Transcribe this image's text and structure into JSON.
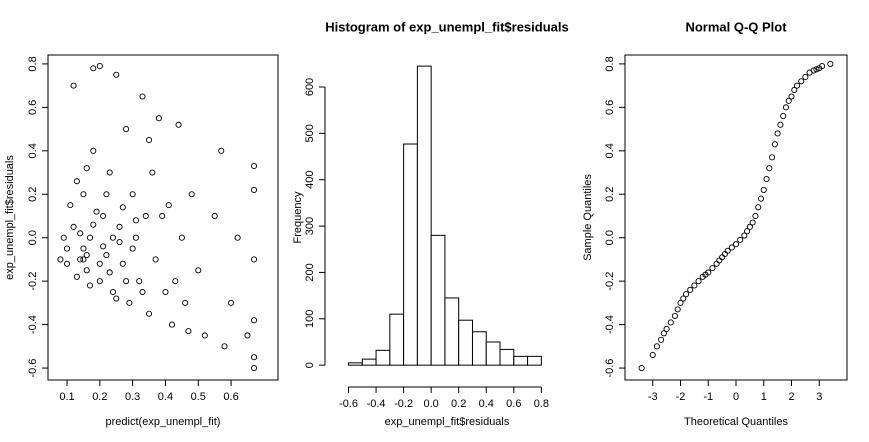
{
  "chart_data": [
    {
      "type": "scatter",
      "xlabel": "predict(exp_unempl_fit)",
      "ylabel": "exp_unempl_fit$residuals",
      "xlim": [
        0.042,
        0.743
      ],
      "ylim": [
        -0.655,
        0.841
      ],
      "xticks": [
        0.1,
        0.2,
        0.3,
        0.4,
        0.5,
        0.6
      ],
      "yticks": [
        -0.6,
        -0.4,
        -0.2,
        {
          "value": 0,
          "label": "0.0"
        },
        0.2,
        0.4,
        0.6,
        0.8
      ],
      "box": true,
      "series": [
        {
          "color": "#000000",
          "x": [
            0.1,
            0.12,
            0.14,
            0.15,
            0.16,
            0.17,
            0.18,
            0.2,
            0.18,
            0.2,
            0.21,
            0.22,
            0.23,
            0.24,
            0.25,
            0.26,
            0.27,
            0.28,
            0.29,
            0.3,
            0.31,
            0.32,
            0.33,
            0.34,
            0.35,
            0.36,
            0.37,
            0.38,
            0.4,
            0.41,
            0.42,
            0.44,
            0.45,
            0.46,
            0.48,
            0.5,
            0.52,
            0.55,
            0.57,
            0.58,
            0.6,
            0.62,
            0.65,
            0.67,
            0.67,
            0.67,
            0.67,
            0.67,
            0.67,
            0.08,
            0.09,
            0.11,
            0.13,
            0.13,
            0.15,
            0.16,
            0.17,
            0.19,
            0.2,
            0.22,
            0.24,
            0.25,
            0.27,
            0.3,
            0.33,
            0.35,
            0.39,
            0.43,
            0.47,
            0.12,
            0.1,
            0.14,
            0.16,
            0.18,
            0.21,
            0.23,
            0.26,
            0.28,
            0.31,
            0.15
          ],
          "y": [
            -0.05,
            0.05,
            -0.1,
            0.2,
            -0.15,
            0.0,
            0.78,
            0.79,
            0.4,
            -0.2,
            0.1,
            -0.08,
            0.3,
            -0.25,
            0.75,
            0.05,
            -0.12,
            0.5,
            -0.3,
            0.2,
            0.0,
            -0.2,
            0.65,
            0.1,
            -0.35,
            0.3,
            -0.1,
            0.55,
            -0.25,
            0.15,
            -0.4,
            0.52,
            0.0,
            -0.3,
            0.2,
            -0.15,
            -0.45,
            0.1,
            0.4,
            -0.5,
            -0.3,
            0.0,
            -0.45,
            0.33,
            0.22,
            -0.1,
            -0.38,
            -0.6,
            -0.55,
            -0.1,
            0.0,
            0.15,
            -0.18,
            0.26,
            -0.05,
            0.32,
            -0.22,
            0.12,
            -0.12,
            0.2,
            0.0,
            -0.28,
            0.14,
            -0.05,
            -0.25,
            0.45,
            0.1,
            -0.2,
            -0.43,
            0.7,
            -0.12,
            0.02,
            -0.08,
            0.06,
            -0.04,
            -0.16,
            -0.02,
            -0.2,
            0.08,
            -0.1
          ]
        }
      ]
    },
    {
      "type": "histogram",
      "title": "Histogram of exp_unempl_fit$residuals",
      "xlabel": "exp_unempl_fit$residuals",
      "ylabel": "Frequency",
      "xlim": [
        -0.72,
        0.95
      ],
      "ylim": [
        -32,
        669
      ],
      "xticks": [
        -0.6,
        -0.4,
        -0.2,
        {
          "value": 0,
          "label": "0.0"
        },
        0.2,
        0.4,
        0.6,
        0.8
      ],
      "yticks": [
        0,
        100,
        200,
        300,
        400,
        500,
        600
      ],
      "bins": [
        -0.6,
        -0.5,
        -0.4,
        -0.3,
        -0.2,
        -0.1,
        0,
        0.1,
        0.2,
        0.3,
        0.4,
        0.5,
        0.6,
        0.7,
        0.8
      ],
      "values": [
        5,
        13,
        32,
        110,
        477,
        645,
        280,
        145,
        97,
        72,
        50,
        34,
        19,
        19
      ],
      "color": "#ffffff"
    },
    {
      "type": "scatter",
      "title": "Normal Q-Q Plot",
      "xlabel": "Theoretical Quantiles",
      "ylabel": "Sample Quantiles",
      "xlim": [
        -4.0,
        4.0
      ],
      "ylim": [
        -0.655,
        0.841
      ],
      "xticks": [
        -3,
        -2,
        -1,
        0,
        1,
        2,
        3
      ],
      "yticks": [
        -0.6,
        -0.4,
        -0.2,
        {
          "value": 0,
          "label": "0.0"
        },
        0.2,
        0.4,
        0.6,
        0.8
      ],
      "box": true,
      "series": [
        {
          "color": "#000000",
          "x": [
            -3.4,
            -3.0,
            -2.85,
            -2.7,
            -2.6,
            -2.5,
            -2.35,
            -2.2,
            -2.1,
            -2.0,
            -1.9,
            -1.8,
            -1.65,
            -1.5,
            -1.35,
            -1.2,
            -1.1,
            -1.0,
            -0.85,
            -0.7,
            -0.6,
            -0.5,
            -0.4,
            -0.3,
            -0.15,
            0,
            0.15,
            0.3,
            0.4,
            0.5,
            0.6,
            0.7,
            0.8,
            0.9,
            1.0,
            1.1,
            1.2,
            1.3,
            1.4,
            1.5,
            1.6,
            1.7,
            1.8,
            1.9,
            2.0,
            2.1,
            2.2,
            2.35,
            2.5,
            2.65,
            2.8,
            2.9,
            3.0,
            3.1,
            3.4
          ],
          "y": [
            -0.6,
            -0.54,
            -0.5,
            -0.47,
            -0.44,
            -0.42,
            -0.39,
            -0.36,
            -0.33,
            -0.3,
            -0.28,
            -0.26,
            -0.24,
            -0.22,
            -0.2,
            -0.18,
            -0.17,
            -0.16,
            -0.14,
            -0.12,
            -0.105,
            -0.09,
            -0.075,
            -0.06,
            -0.045,
            -0.03,
            -0.01,
            0.01,
            0.03,
            0.05,
            0.07,
            0.1,
            0.14,
            0.18,
            0.22,
            0.27,
            0.32,
            0.37,
            0.43,
            0.48,
            0.52,
            0.56,
            0.6,
            0.63,
            0.65,
            0.68,
            0.7,
            0.72,
            0.74,
            0.76,
            0.77,
            0.775,
            0.78,
            0.79,
            0.8
          ]
        }
      ]
    }
  ]
}
